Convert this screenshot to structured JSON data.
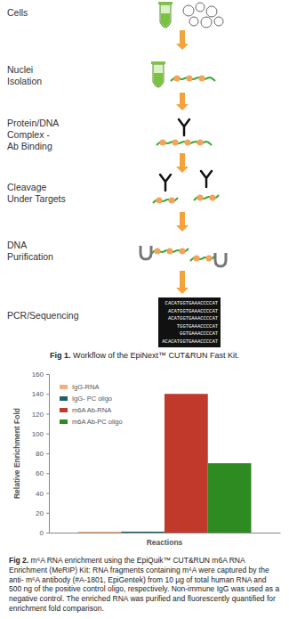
{
  "workflow": {
    "steps": [
      {
        "label": [
          "Cells"
        ]
      },
      {
        "label": [
          "Nuclei",
          "Isolation"
        ]
      },
      {
        "label": [
          "Protein/DNA",
          "Complex -",
          "Ab Binding"
        ]
      },
      {
        "label": [
          "Cleavage",
          "Under Targets"
        ]
      },
      {
        "label": [
          "DNA",
          "Purification"
        ]
      },
      {
        "label": [
          "PCR/Sequencing"
        ]
      }
    ],
    "sequence_reads": [
      "CACATGGTGAAACCCCAT",
      "ACATGGTGAAACCCCAT",
      "ACATGGTGAAACCCCAT",
      "TGGTGAAACCCCAT",
      "GGTGAAACCCCAT",
      "ACACATGGTGAAACCCCAT"
    ],
    "caption": {
      "label": "Fig 1.",
      "text": "Workflow of the EpiNext™ CUT&RUN Fast Kit."
    }
  },
  "chart_data": {
    "type": "bar",
    "x_label": "Reactions",
    "y_label": "Relative Enrichment Fold",
    "categories": [
      null
    ],
    "series": [
      {
        "name": "IgG-RNA",
        "color": "#f4b183",
        "values": [
          1
        ]
      },
      {
        "name": "IgG- PC oligo",
        "color": "#1f5f6b",
        "values": [
          1
        ]
      },
      {
        "name": "m6A Ab-RNA",
        "color": "#c0392b",
        "values": [
          140
        ]
      },
      {
        "name": "m6A Ab-PC oligo",
        "color": "#2e8b22",
        "values": [
          70
        ]
      }
    ],
    "ylim": [
      0,
      160
    ],
    "yticks": [
      0,
      20,
      40,
      60,
      80,
      100,
      120,
      140,
      160
    ],
    "legend": "upper left",
    "tick_labels": "y"
  },
  "figure2_caption": {
    "label": "Fig 2.",
    "text": "m⁶A RNA enrichment using the EpiQuik™ CUT&RUN m6A RNA Enrichment (MeRIP) Kit: RNA fragments containing m⁶A were captured by the anti- m⁶A antibody (#A-1801, EpiGentek) from 10 µg of total human RNA and 500 ng of the positive control oligo, respectively. Non-immune IgG was used as a negative control. The enriched RNA was purified and fluorescently quantified for enrichment fold comparison."
  }
}
